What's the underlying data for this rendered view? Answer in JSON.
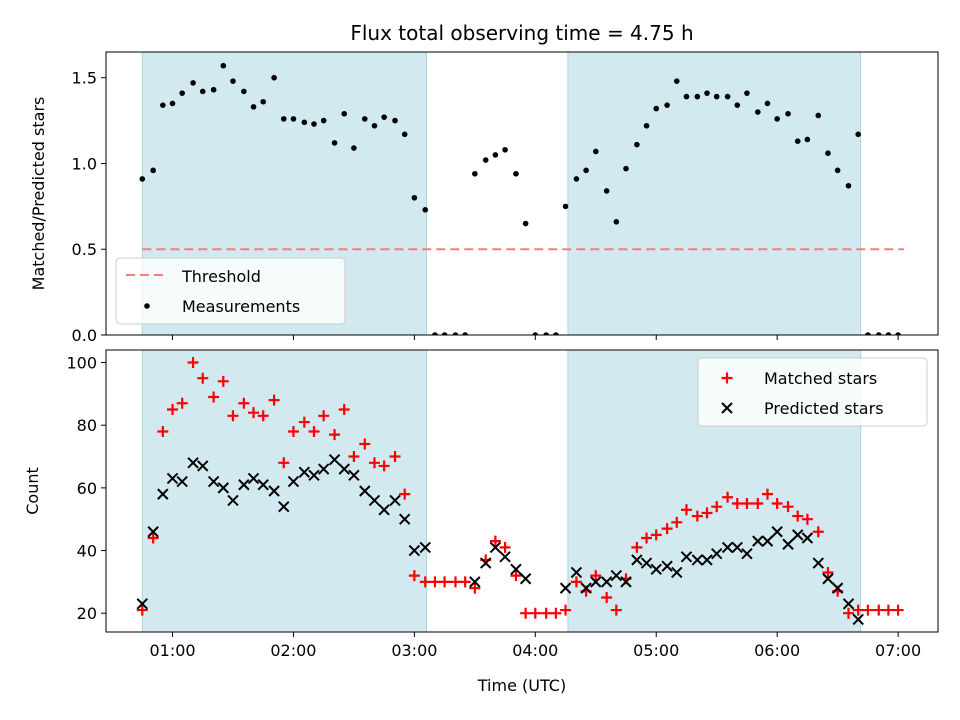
{
  "title": "Flux total observing time = 4.75 h",
  "chart_data": [
    {
      "type": "scatter",
      "ylabel": "Matched/Predicted stars",
      "xlim": [
        0.45,
        7.33
      ],
      "ylim": [
        0.0,
        1.65
      ],
      "yticks": [
        0.0,
        0.5,
        1.0,
        1.5
      ],
      "ytick_labels": [
        "0.0",
        "0.5",
        "1.0",
        "1.5"
      ],
      "shaded_intervals": [
        [
          0.75,
          3.1
        ],
        [
          4.27,
          6.69
        ]
      ],
      "shade_color": "#d2e9f0",
      "threshold": {
        "name": "Threshold",
        "value": 0.5,
        "x_range": [
          0.75,
          7.05
        ],
        "color": "#f08080"
      },
      "legend": {
        "position": "lower-left",
        "entries": [
          "Threshold",
          "Measurements"
        ]
      },
      "series": [
        {
          "name": "Measurements",
          "marker": "dot",
          "color": "#000000",
          "x": [
            0.75,
            0.84,
            0.92,
            1.0,
            1.08,
            1.17,
            1.25,
            1.34,
            1.42,
            1.5,
            1.59,
            1.67,
            1.75,
            1.84,
            1.92,
            2.0,
            2.09,
            2.17,
            2.25,
            2.34,
            2.42,
            2.5,
            2.59,
            2.67,
            2.75,
            2.84,
            2.92,
            3.0,
            3.09,
            3.17,
            3.25,
            3.34,
            3.42,
            3.5,
            3.59,
            3.67,
            3.75,
            3.84,
            3.92,
            4.0,
            4.09,
            4.17,
            4.25,
            4.34,
            4.42,
            4.5,
            4.59,
            4.67,
            4.75,
            4.84,
            4.92,
            5.0,
            5.09,
            5.17,
            5.25,
            5.34,
            5.42,
            5.5,
            5.59,
            5.67,
            5.75,
            5.84,
            5.92,
            6.0,
            6.09,
            6.17,
            6.25,
            6.34,
            6.42,
            6.5,
            6.59,
            6.67,
            6.75,
            6.84,
            6.92,
            7.0
          ],
          "y": [
            0.91,
            0.96,
            1.34,
            1.35,
            1.41,
            1.47,
            1.42,
            1.43,
            1.57,
            1.48,
            1.42,
            1.33,
            1.36,
            1.5,
            1.26,
            1.26,
            1.24,
            1.23,
            1.25,
            1.12,
            1.29,
            1.09,
            1.26,
            1.22,
            1.27,
            1.25,
            1.17,
            0.8,
            0.73,
            0.0,
            0.0,
            0.0,
            0.0,
            0.94,
            1.02,
            1.05,
            1.08,
            0.94,
            0.65,
            0.0,
            0.0,
            0.0,
            0.75,
            0.91,
            0.96,
            1.07,
            0.84,
            0.66,
            0.97,
            1.11,
            1.22,
            1.32,
            1.34,
            1.48,
            1.39,
            1.39,
            1.41,
            1.39,
            1.39,
            1.34,
            1.41,
            1.3,
            1.35,
            1.26,
            1.29,
            1.13,
            1.14,
            1.28,
            1.06,
            0.96,
            0.87,
            1.17,
            0.0,
            0.0,
            0.0,
            0.0
          ]
        }
      ]
    },
    {
      "type": "scatter",
      "xlabel": "Time (UTC)",
      "ylabel": "Count",
      "xlim": [
        0.45,
        7.33
      ],
      "ylim": [
        14,
        104
      ],
      "xticks": [
        1,
        2,
        3,
        4,
        5,
        6,
        7
      ],
      "xtick_labels": [
        "01:00",
        "02:00",
        "03:00",
        "04:00",
        "05:00",
        "06:00",
        "07:00"
      ],
      "yticks": [
        20,
        40,
        60,
        80,
        100
      ],
      "ytick_labels": [
        "20",
        "40",
        "60",
        "80",
        "100"
      ],
      "shaded_intervals": [
        [
          0.75,
          3.1
        ],
        [
          4.27,
          6.69
        ]
      ],
      "shade_color": "#d2e9f0",
      "legend": {
        "position": "top-right",
        "entries": [
          "Matched stars",
          "Predicted stars"
        ]
      },
      "series": [
        {
          "name": "Matched stars",
          "marker": "plus",
          "color": "#ff0000",
          "x": [
            0.75,
            0.84,
            0.92,
            1.0,
            1.08,
            1.17,
            1.25,
            1.34,
            1.42,
            1.5,
            1.59,
            1.67,
            1.75,
            1.84,
            1.92,
            2.0,
            2.09,
            2.17,
            2.25,
            2.34,
            2.42,
            2.5,
            2.59,
            2.67,
            2.75,
            2.84,
            2.92,
            3.0,
            3.09,
            3.17,
            3.25,
            3.34,
            3.42,
            3.5,
            3.59,
            3.67,
            3.75,
            3.84,
            3.92,
            4.0,
            4.09,
            4.17,
            4.25,
            4.34,
            4.42,
            4.5,
            4.59,
            4.67,
            4.75,
            4.84,
            4.92,
            5.0,
            5.09,
            5.17,
            5.25,
            5.34,
            5.42,
            5.5,
            5.59,
            5.67,
            5.75,
            5.84,
            5.92,
            6.0,
            6.09,
            6.17,
            6.25,
            6.34,
            6.42,
            6.5,
            6.59,
            6.67,
            6.75,
            6.84,
            6.92,
            7.0
          ],
          "y": [
            21,
            44,
            78,
            85,
            87,
            100,
            95,
            89,
            94,
            83,
            87,
            84,
            83,
            88,
            68,
            78,
            81,
            78,
            83,
            77,
            85,
            70,
            74,
            68,
            67,
            70,
            58,
            32,
            30,
            30,
            30,
            30,
            30,
            28,
            37,
            43,
            41,
            32,
            20,
            20,
            20,
            20,
            21,
            30,
            27,
            32,
            25,
            21,
            31,
            41,
            44,
            45,
            47,
            49,
            53,
            51,
            52,
            54,
            57,
            55,
            55,
            55,
            58,
            55,
            54,
            51,
            50,
            46,
            33,
            27,
            20,
            21,
            21,
            21,
            21,
            21
          ]
        },
        {
          "name": "Predicted stars",
          "marker": "x",
          "color": "#000000",
          "x": [
            0.75,
            0.84,
            0.92,
            1.0,
            1.08,
            1.17,
            1.25,
            1.34,
            1.42,
            1.5,
            1.59,
            1.67,
            1.75,
            1.84,
            1.92,
            2.0,
            2.09,
            2.17,
            2.25,
            2.34,
            2.42,
            2.5,
            2.59,
            2.67,
            2.75,
            2.84,
            2.92,
            3.0,
            3.09,
            3.5,
            3.59,
            3.67,
            3.75,
            3.84,
            3.92,
            4.25,
            4.34,
            4.42,
            4.5,
            4.59,
            4.67,
            4.75,
            4.84,
            4.92,
            5.0,
            5.09,
            5.17,
            5.25,
            5.34,
            5.42,
            5.5,
            5.59,
            5.67,
            5.75,
            5.84,
            5.92,
            6.0,
            6.09,
            6.17,
            6.25,
            6.34,
            6.42,
            6.5,
            6.59,
            6.67
          ],
          "y": [
            23,
            46,
            58,
            63,
            62,
            68,
            67,
            62,
            60,
            56,
            61,
            63,
            61,
            59,
            54,
            62,
            65,
            64,
            66,
            69,
            66,
            64,
            59,
            56,
            53,
            56,
            50,
            40,
            41,
            30,
            36,
            41,
            38,
            34,
            31,
            28,
            33,
            28,
            30,
            30,
            32,
            30,
            37,
            36,
            34,
            35,
            33,
            38,
            37,
            37,
            39,
            41,
            41,
            39,
            43,
            43,
            46,
            42,
            45,
            44,
            36,
            31,
            28,
            23,
            18
          ]
        }
      ]
    }
  ]
}
